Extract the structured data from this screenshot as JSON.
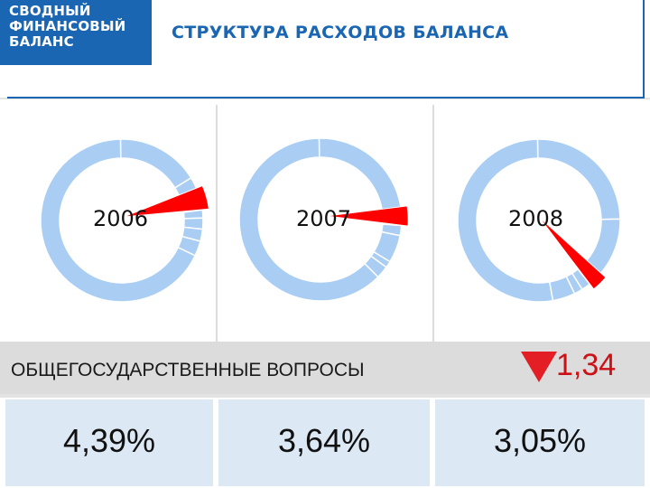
{
  "brand": {
    "line1": "СВОДНЫЙ",
    "line2": "ФИНАНСОВЫЙ",
    "line3": "БАЛАНС"
  },
  "title": "СТРУКТУРА РАСХОДОВ БАЛАНСА",
  "colors": {
    "ring": "#a9cdf3",
    "highlight": "#ff0000",
    "brand": "#1a66b3",
    "arrow": "#e31e24"
  },
  "chart_data": [
    {
      "type": "pie",
      "year": "2006",
      "highlight_share_percent": 4.39,
      "ring_segments_percent": [
        16.5,
        2.3,
        4.39,
        1.6,
        2.2,
        2.4,
        3.0,
        67.61
      ]
    },
    {
      "type": "pie",
      "year": "2007",
      "highlight_share_percent": 3.64,
      "ring_segments_percent": [
        22.8,
        3.64,
        2.0,
        5.5,
        1.3,
        2.5,
        62.26
      ]
    },
    {
      "type": "pie",
      "year": "2008",
      "highlight_share_percent": 3.05,
      "ring_segments_percent": [
        25.0,
        11.5,
        3.05,
        1.8,
        1.7,
        4.5,
        52.45
      ]
    }
  ],
  "category": {
    "label": "ОБЩЕГОСУДАРСТВЕННЫЕ ВОПРОСЫ",
    "change": "1,34",
    "direction": "down"
  },
  "values": [
    "4,39%",
    "3,64%",
    "3,05%"
  ]
}
